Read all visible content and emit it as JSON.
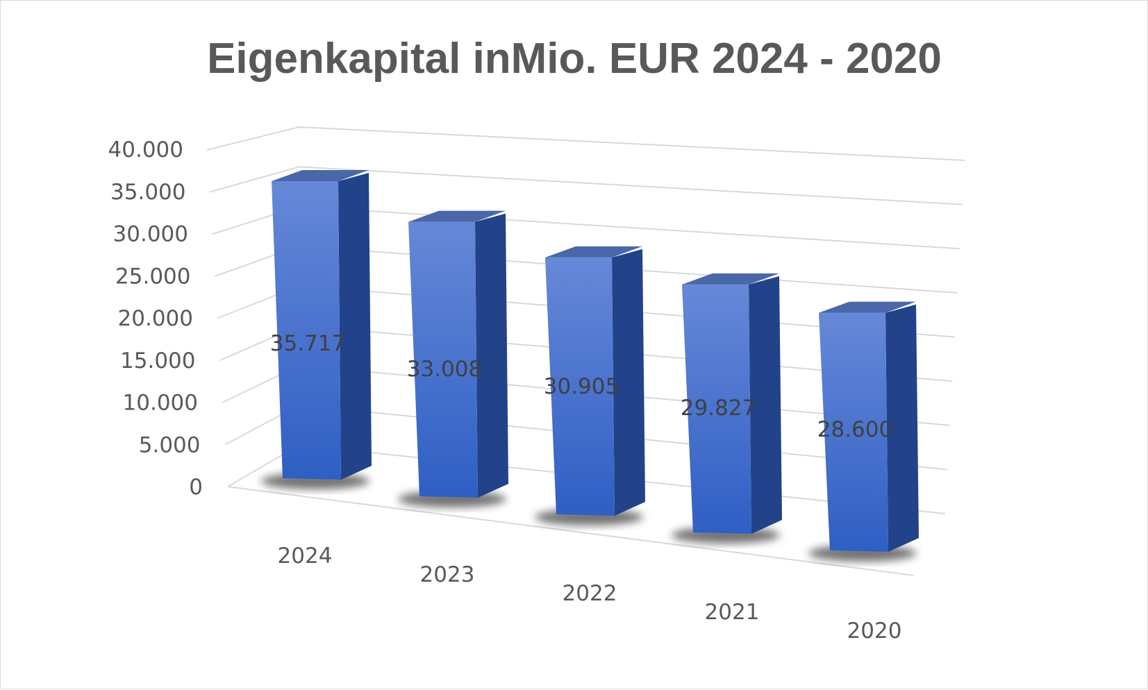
{
  "chart_data": {
    "type": "bar",
    "title": "Eigenkapital inMio. EUR 2024 - 2020",
    "categories": [
      "2024",
      "2023",
      "2022",
      "2021",
      "2020"
    ],
    "values": [
      35717,
      33008,
      30905,
      29827,
      28600
    ],
    "data_labels": [
      "35.717",
      "33.008",
      "30.905",
      "29.827",
      "28.600"
    ],
    "y_ticks": [
      "0",
      "5.000",
      "10.000",
      "15.000",
      "20.000",
      "25.000",
      "30.000",
      "35.000",
      "40.000"
    ],
    "ylim": [
      0,
      40000
    ],
    "grid": true,
    "legend": "none",
    "style": "3d-column",
    "colors": {
      "bar_front_top": "#6688d8",
      "bar_front_bottom": "#2f5fc4",
      "bar_side": "#22428a",
      "bar_top": "#4a67aa",
      "gridline": "#d9d9d9",
      "text": "#595959"
    }
  }
}
